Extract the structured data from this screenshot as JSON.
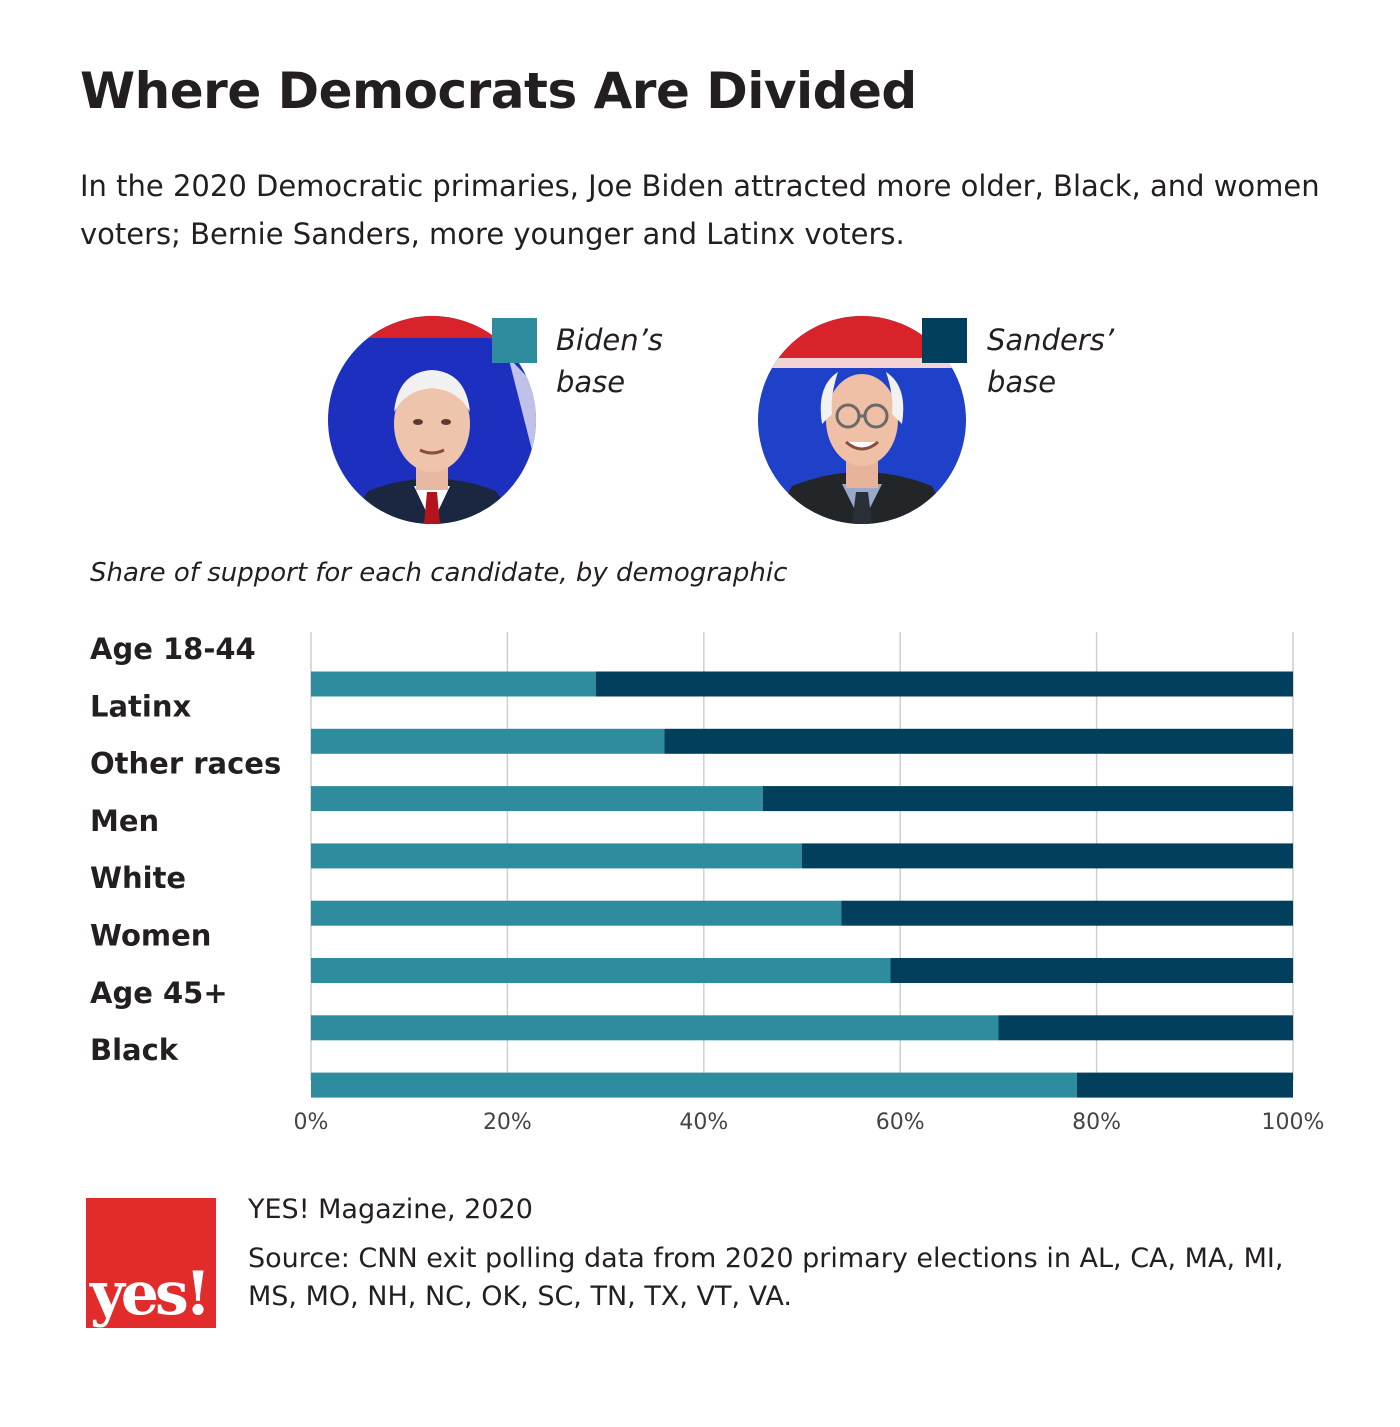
{
  "header": {
    "title": "Where Democrats Are Divided",
    "subtitle": "In the 2020 Democratic primaries, Joe Biden attracted more older, Black, and women voters; Bernie Sanders, more younger and Latinx voters."
  },
  "legend": {
    "biden": {
      "line1": "Biden’s",
      "line2": "base",
      "color": "#2e8c9e",
      "icon": "biden-portrait"
    },
    "sanders": {
      "line1": "Sanders’",
      "line2": "base",
      "color": "#023f5c",
      "icon": "sanders-portrait"
    }
  },
  "chart_caption": "Share of support for each candidate, by demographic",
  "chart_data": {
    "type": "bar",
    "orientation": "horizontal",
    "stacked": true,
    "categories": [
      "Age 18-44",
      "Latinx",
      "Other races",
      "Men",
      "White",
      "Women",
      "Age 45+",
      "Black"
    ],
    "series": [
      {
        "name": "Biden’s base",
        "color": "#2e8c9e",
        "values": [
          29,
          36,
          46,
          50,
          54,
          59,
          70,
          78
        ]
      },
      {
        "name": "Sanders’ base",
        "color": "#023f5c",
        "values": [
          71,
          64,
          54,
          50,
          46,
          41,
          30,
          22
        ]
      }
    ],
    "xlim": [
      0,
      100
    ],
    "xticks": [
      "0%",
      "20%",
      "40%",
      "60%",
      "80%",
      "100%"
    ],
    "grid": true,
    "legend_position": "top"
  },
  "footer": {
    "logo_text": "yes!",
    "logo_color": "#e22b2b",
    "credit": "YES! Magazine, 2020",
    "source": "Source: CNN exit polling data from 2020 primary elections in AL, CA, MA, MI, MS, MO, NH, NC, OK, SC, TN, TX, VT, VA."
  }
}
